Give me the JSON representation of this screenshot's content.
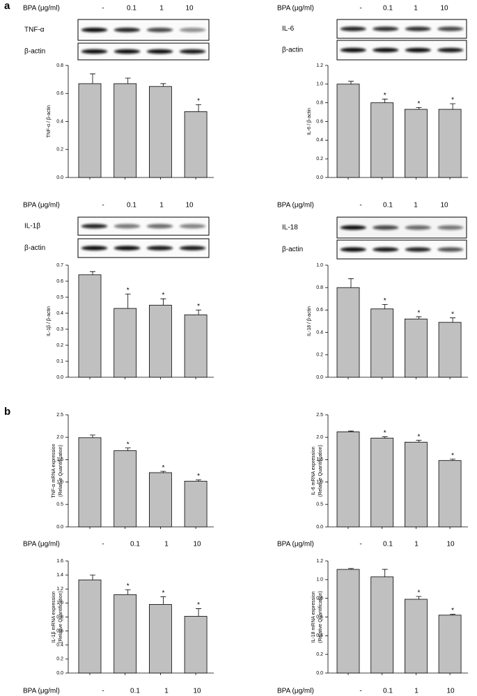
{
  "panel_labels": [
    "a",
    "b"
  ],
  "chart_data": [
    {
      "type": "bar",
      "ylabel": [
        "TNF-α / β-actin"
      ],
      "bpa_label": "BPA (μg/ml)",
      "categories": [
        "-",
        "0.1",
        "1",
        "10"
      ],
      "blot_labels": [
        "TNF-α",
        "β-actin"
      ],
      "values": [
        0.67,
        0.67,
        0.65,
        0.47
      ],
      "errors": [
        0.07,
        0.04,
        0.02,
        0.05
      ],
      "significance": [
        null,
        null,
        null,
        "*"
      ],
      "color": "#c0c0c0",
      "ylim": [
        0,
        0.8
      ],
      "yticks": [
        {
          "value": 0,
          "label": "0.0"
        },
        0.2,
        0.4,
        0.6,
        0.8
      ]
    },
    {
      "type": "bar",
      "ylabel": [
        "IL-6 / β-actin"
      ],
      "bpa_label": "BPA (μg/ml)",
      "categories": [
        "-",
        "0.1",
        "1",
        "10"
      ],
      "blot_labels": [
        "IL-6",
        "β-actin"
      ],
      "values": [
        1.0,
        0.8,
        0.73,
        0.73
      ],
      "errors": [
        0.03,
        0.04,
        0.02,
        0.06
      ],
      "significance": [
        null,
        "*",
        "*",
        "*"
      ],
      "color": "#c0c0c0",
      "ylim": [
        0,
        1.2
      ],
      "yticks": [
        {
          "value": 0,
          "label": "0.0"
        },
        0.2,
        0.4,
        0.6,
        0.8,
        {
          "value": 1,
          "label": "1.0"
        },
        1.2
      ]
    },
    {
      "type": "bar",
      "ylabel": [
        "IL-1β / β-actin"
      ],
      "bpa_label": "BPA (μg/ml)",
      "categories": [
        "-",
        "0.1",
        "1",
        "10"
      ],
      "blot_labels": [
        "IL-1β",
        "β-actin"
      ],
      "values": [
        0.64,
        0.43,
        0.45,
        0.39
      ],
      "errors": [
        0.02,
        0.09,
        0.04,
        0.03
      ],
      "significance": [
        null,
        "*",
        "*",
        "*"
      ],
      "color": "#c0c0c0",
      "ylim": [
        0,
        0.7
      ],
      "yticks": [
        {
          "value": 0,
          "label": "0.0"
        },
        0.1,
        0.2,
        0.3,
        0.4,
        0.5,
        0.6,
        0.7
      ]
    },
    {
      "type": "bar",
      "ylabel": [
        "IL-18 / β-actin"
      ],
      "bpa_label": "BPA (μg/ml)",
      "categories": [
        "-",
        "0.1",
        "1",
        "10"
      ],
      "blot_labels": [
        "IL-18",
        "β-actin"
      ],
      "values": [
        0.8,
        0.61,
        0.52,
        0.49
      ],
      "errors": [
        0.08,
        0.04,
        0.02,
        0.04
      ],
      "significance": [
        null,
        "*",
        "*",
        "*"
      ],
      "color": "#c0c0c0",
      "ylim": [
        0,
        1.0
      ],
      "yticks": [
        {
          "value": 0,
          "label": "0.0"
        },
        0.2,
        0.4,
        0.6,
        0.8,
        {
          "value": 1,
          "label": "1.0"
        }
      ]
    },
    {
      "type": "bar",
      "ylabel": [
        "TNF-α mRNA expression",
        "(Relative Quantification)"
      ],
      "bpa_label": "BPA (μg/ml)",
      "categories": [
        "-",
        "0.1",
        "1",
        "10"
      ],
      "values": [
        1.99,
        1.7,
        1.21,
        1.02
      ],
      "errors": [
        0.06,
        0.06,
        0.03,
        0.03
      ],
      "significance": [
        null,
        "*",
        "*",
        "*"
      ],
      "color": "#c0c0c0",
      "ylim": [
        0,
        2.5
      ],
      "yticks": [
        {
          "value": 0,
          "label": "0.0"
        },
        0.5,
        {
          "value": 1,
          "label": "1.0"
        },
        1.5,
        {
          "value": 2,
          "label": "2.0"
        },
        2.5
      ]
    },
    {
      "type": "bar",
      "ylabel": [
        "IL-6 mRNA expression",
        "(Relative Quantification)"
      ],
      "bpa_label": "BPA (μg/ml)",
      "categories": [
        "-",
        "0.1",
        "1",
        "10"
      ],
      "values": [
        2.12,
        1.98,
        1.89,
        1.48
      ],
      "errors": [
        0.02,
        0.03,
        0.04,
        0.03
      ],
      "significance": [
        null,
        "*",
        "*",
        "*"
      ],
      "color": "#c0c0c0",
      "ylim": [
        0,
        2.5
      ],
      "yticks": [
        {
          "value": 0,
          "label": "0.0"
        },
        0.5,
        {
          "value": 1,
          "label": "1.0"
        },
        1.5,
        {
          "value": 2,
          "label": "2.0"
        },
        2.5
      ]
    },
    {
      "type": "bar",
      "ylabel": [
        "IL-1β mRNA expression",
        "(Relative Quantification)"
      ],
      "bpa_label": "BPA (μg/ml)",
      "categories": [
        "-",
        "0.1",
        "1",
        "10"
      ],
      "values": [
        1.33,
        1.12,
        0.98,
        0.81
      ],
      "errors": [
        0.07,
        0.07,
        0.11,
        0.11
      ],
      "significance": [
        null,
        "*",
        "*",
        "*"
      ],
      "color": "#c0c0c0",
      "ylim": [
        0,
        1.6
      ],
      "yticks": [
        {
          "value": 0,
          "label": "0.0"
        },
        0.2,
        0.4,
        0.6,
        0.8,
        {
          "value": 1,
          "label": "1.0"
        },
        1.2,
        1.4,
        1.6
      ]
    },
    {
      "type": "bar",
      "ylabel": [
        "IL-18 mRNA expression",
        "(Relative Quantification)"
      ],
      "bpa_label": "BPA (μg/ml)",
      "categories": [
        "-",
        "0.1",
        "1",
        "10"
      ],
      "values": [
        1.11,
        1.03,
        0.79,
        0.62
      ],
      "errors": [
        0.01,
        0.08,
        0.03,
        0.01
      ],
      "significance": [
        null,
        null,
        "*",
        "*"
      ],
      "color": "#c0c0c0",
      "ylim": [
        0,
        1.2
      ],
      "yticks": [
        {
          "value": 0,
          "label": "0.0"
        },
        0.2,
        0.4,
        0.6,
        0.8,
        {
          "value": 1,
          "label": "1.0"
        },
        1.2
      ]
    }
  ]
}
